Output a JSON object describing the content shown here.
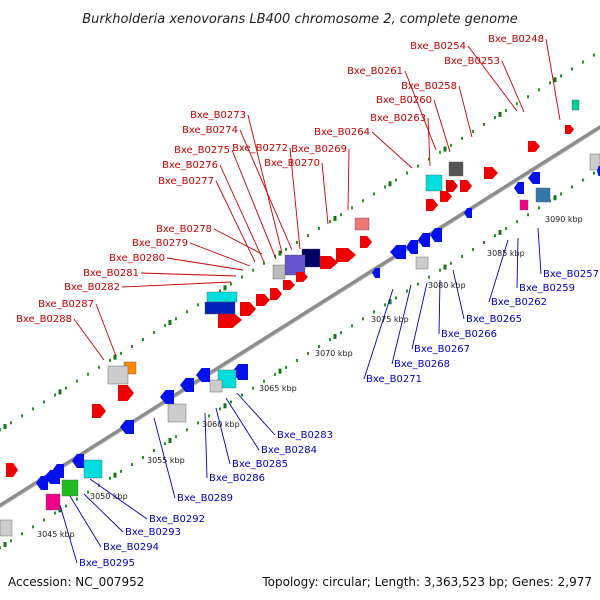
{
  "title": "Burkholderia xenovorans LB400 chromosome 2, complete genome",
  "footer": {
    "accession": "Accession: NC_007952",
    "summary": "Topology: circular; Length: 3,363,523 bp; Genes: 2,977"
  },
  "colors": {
    "forward_label": "#cc0000",
    "reverse_label": "#0000cc",
    "forward_gene": "#ee0000",
    "reverse_gene": "#0011ee",
    "backbone": "#8c8c8c",
    "outer_dots": "#229922",
    "inner_dots": "#229922"
  },
  "scale_labels": [
    "3045 kbp",
    "3050 kbp",
    "3055 kbp",
    "3060 kbp",
    "3065 kbp",
    "3070 kbp",
    "3075 kbp",
    "3080 kbp",
    "3085 kbp",
    "3090 kbp"
  ],
  "forward_genes": [
    "Bxe_B0248",
    "Bxe_B0254",
    "Bxe_B0253",
    "Bxe_B0261",
    "Bxe_B0258",
    "Bxe_B0260",
    "Bxe_B0263",
    "Bxe_B0264",
    "Bxe_B0273",
    "Bxe_B0274",
    "Bxe_B0272",
    "Bxe_B0269",
    "Bxe_B0275",
    "Bxe_B0270",
    "Bxe_B0276",
    "Bxe_B0277",
    "Bxe_B0278",
    "Bxe_B0279",
    "Bxe_B0280",
    "Bxe_B0281",
    "Bxe_B0282",
    "Bxe_B0287",
    "Bxe_B0288"
  ],
  "reverse_genes": [
    "Bxe_B0257",
    "Bxe_B0259",
    "Bxe_B0262",
    "Bxe_B0265",
    "Bxe_B0266",
    "Bxe_B0267",
    "Bxe_B0268",
    "Bxe_B0271",
    "Bxe_B0283",
    "Bxe_B0284",
    "Bxe_B0285",
    "Bxe_B0286",
    "Bxe_B0289",
    "Bxe_B0292",
    "Bxe_B0293",
    "Bxe_B0294",
    "Bxe_B0295"
  ]
}
